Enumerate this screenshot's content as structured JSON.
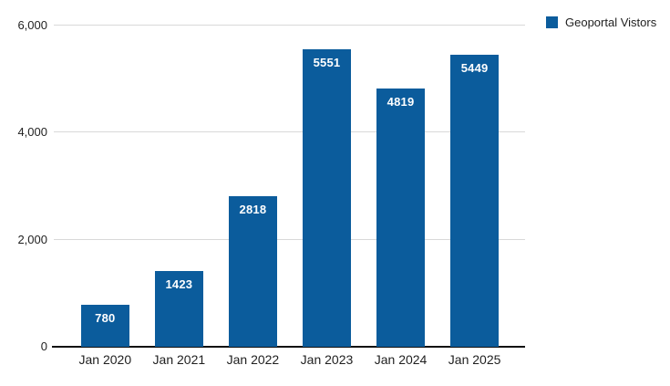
{
  "legend": {
    "label": "Geoportal Vistors"
  },
  "colors": {
    "bar": "#0b5c9c",
    "grid": "#d9d9d9",
    "axis_line": "#111111",
    "axis_text": "#1f1f1f",
    "value_label": "#ffffff",
    "background": "#ffffff"
  },
  "chart_data": {
    "type": "bar",
    "series_name": "Geoportal Vistors",
    "categories": [
      "Jan 2020",
      "Jan 2021",
      "Jan 2022",
      "Jan 2023",
      "Jan 2024",
      "Jan 2025"
    ],
    "values": [
      780,
      1423,
      2818,
      5551,
      4819,
      5449
    ],
    "title": "",
    "xlabel": "",
    "ylabel": "",
    "ylim": [
      0,
      6000
    ],
    "yticks": [
      0,
      2000,
      4000,
      6000
    ],
    "ytick_labels": [
      "0",
      "2,000",
      "4,000",
      "6,000"
    ],
    "grid": true,
    "legend_position": "top-right",
    "bar_value_labels_inside_top": true
  }
}
